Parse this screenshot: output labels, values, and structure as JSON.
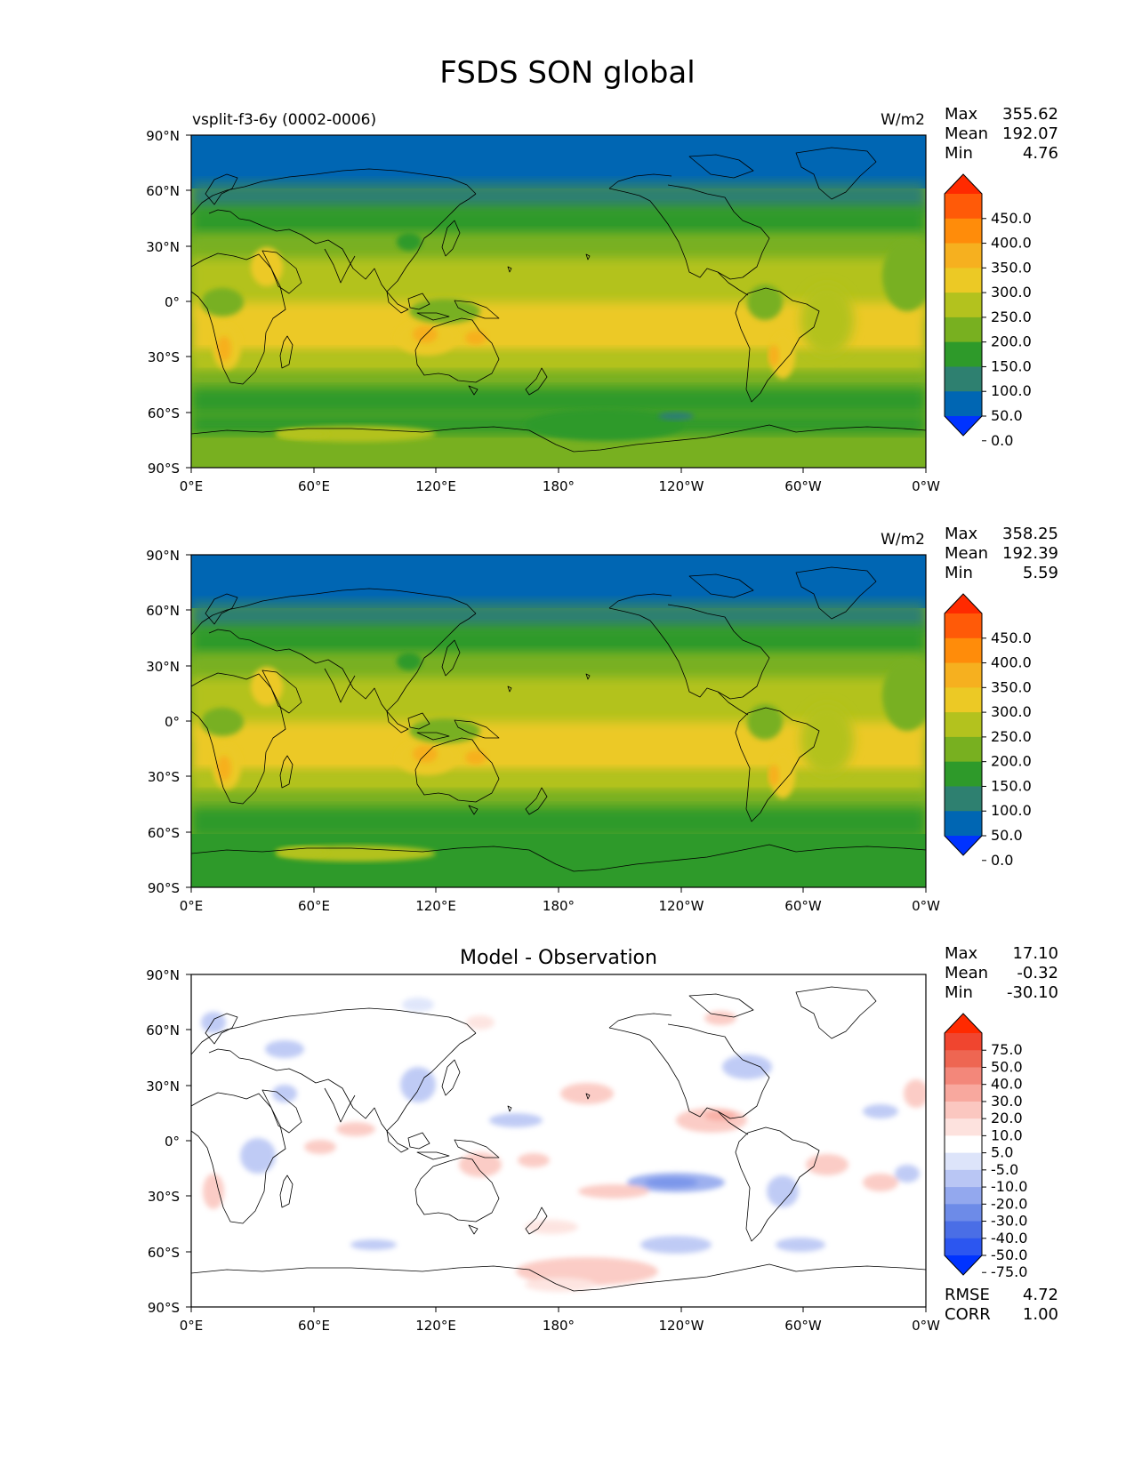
{
  "title": "FSDS SON global",
  "lat_ticks": [
    "90°N",
    "60°N",
    "30°N",
    "0°",
    "30°S",
    "60°S",
    "90°S"
  ],
  "lon_ticks": [
    "0°E",
    "60°E",
    "120°E",
    "180°",
    "120°W",
    "60°W",
    "0°W"
  ],
  "stat_labels": {
    "max": "Max",
    "mean": "Mean",
    "min": "Min",
    "rmse": "RMSE",
    "corr": "CORR"
  },
  "panels": [
    {
      "id": "model",
      "left_title": "vsplit-f3-6y (0002-0006)",
      "center_title": "",
      "units": "W/m2",
      "stats": {
        "max": "355.62",
        "mean": "192.07",
        "min": "4.76"
      },
      "colorbar": {
        "labels": [
          "450.0",
          "400.0",
          "350.0",
          "300.0",
          "250.0",
          "200.0",
          "150.0",
          "100.0",
          "50.0",
          "0.0"
        ],
        "colors": [
          "#0033ff",
          "#0066b3",
          "#2e8070",
          "#2e9a2a",
          "#78b020",
          "#b3c21e",
          "#ecc925",
          "#f6b01f",
          "#ff8c0a",
          "#ff5a08",
          "#ff2a00"
        ]
      }
    },
    {
      "id": "observation",
      "left_title": "",
      "center_title": "",
      "units": "W/m2",
      "stats": {
        "max": "358.25",
        "mean": "192.39",
        "min": "5.59"
      },
      "colorbar": {
        "labels": [
          "450.0",
          "400.0",
          "350.0",
          "300.0",
          "250.0",
          "200.0",
          "150.0",
          "100.0",
          "50.0",
          "0.0"
        ],
        "colors": [
          "#0033ff",
          "#0066b3",
          "#2e8070",
          "#2e9a2a",
          "#78b020",
          "#b3c21e",
          "#ecc925",
          "#f6b01f",
          "#ff8c0a",
          "#ff5a08",
          "#ff2a00"
        ]
      }
    },
    {
      "id": "difference",
      "left_title": "",
      "center_title": "Model - Observation",
      "units": "",
      "stats": {
        "max": "17.10",
        "mean": "-0.32",
        "min": "-30.10",
        "rmse": "4.72",
        "corr": "1.00"
      },
      "colorbar": {
        "labels": [
          "75.0",
          "50.0",
          "40.0",
          "30.0",
          "20.0",
          "10.0",
          "5.0",
          "-5.0",
          "-10.0",
          "-20.0",
          "-30.0",
          "-40.0",
          "-50.0",
          "-75.0"
        ],
        "colors": [
          "#0033ff",
          "#2c56f0",
          "#4a6ee6",
          "#6d8be8",
          "#93a8ee",
          "#b9c6f4",
          "#dde4fa",
          "#ffffff",
          "#fde2de",
          "#fbc7c0",
          "#f8a89e",
          "#f3877a",
          "#ee6652",
          "#f0452f",
          "#ff2a00"
        ]
      }
    }
  ]
}
